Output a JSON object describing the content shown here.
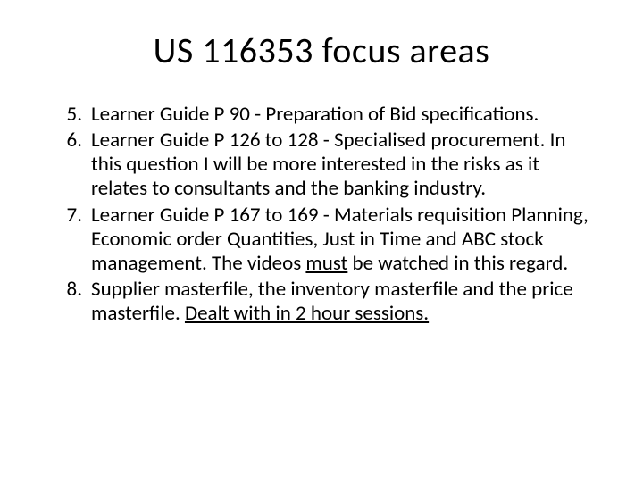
{
  "slide": {
    "title": "US 116353 focus areas",
    "title_fontsize": 40,
    "body_fontsize": 23,
    "background_color": "#ffffff",
    "text_color": "#000000",
    "list_start": 5,
    "items": [
      {
        "n": 5,
        "text": "Learner Guide P 90  -  Preparation of Bid specifications."
      },
      {
        "n": 6,
        "text": "Learner Guide P 126 to 128  - Specialised procurement.  In this question I will be more interested in the risks as it relates to consultants and the banking industry."
      },
      {
        "n": 7,
        "pre": "Learner Guide P 167 to 169  - Materials requisition Planning, Economic order Quantities, Just in Time and ABC stock management.  The videos ",
        "underlined": "must",
        "post": " be watched in this regard."
      },
      {
        "n": 8,
        "pre": "Supplier masterfile, the inventory masterfile and the price masterfile.   ",
        "underlined": "Dealt with in 2 hour sessions.",
        "post": ""
      }
    ]
  }
}
